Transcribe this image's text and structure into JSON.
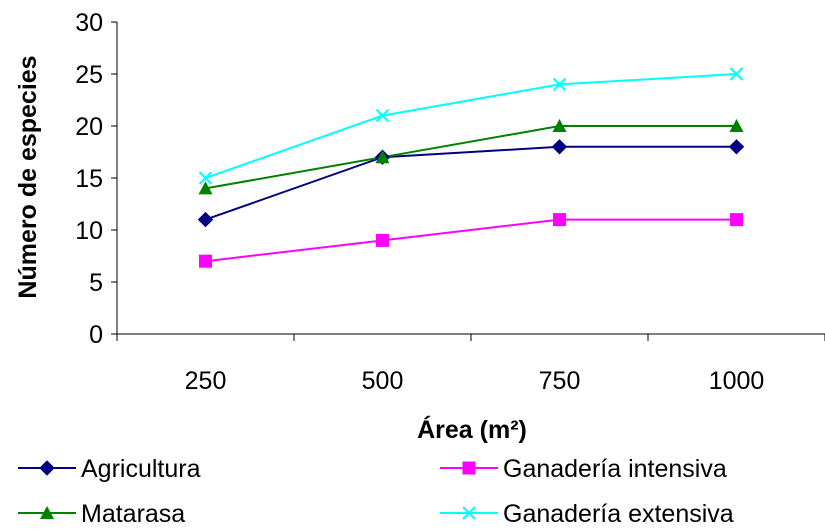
{
  "chart_data": {
    "type": "line",
    "categories": [
      "250",
      "500",
      "750",
      "1000"
    ],
    "xlabel": "Área (m²)",
    "ylabel": "Número de especies",
    "ylim": [
      0,
      30
    ],
    "yticks": [
      "0",
      "5",
      "10",
      "15",
      "20",
      "25",
      "30"
    ],
    "grid": false,
    "legend_position": "bottom",
    "series": [
      {
        "name": "Agricultura",
        "values": [
          11,
          17,
          18,
          18
        ],
        "color": "#000080",
        "marker": "diamond"
      },
      {
        "name": "Ganadería intensiva",
        "values": [
          7,
          9,
          11,
          11
        ],
        "color": "#FF00FF",
        "marker": "square"
      },
      {
        "name": "Matarasa",
        "values": [
          14,
          17,
          20,
          20
        ],
        "color": "#008000",
        "marker": "triangle"
      },
      {
        "name": "Ganadería extensiva",
        "values": [
          15,
          21,
          24,
          25
        ],
        "color": "#00FFFF",
        "marker": "x"
      }
    ]
  }
}
